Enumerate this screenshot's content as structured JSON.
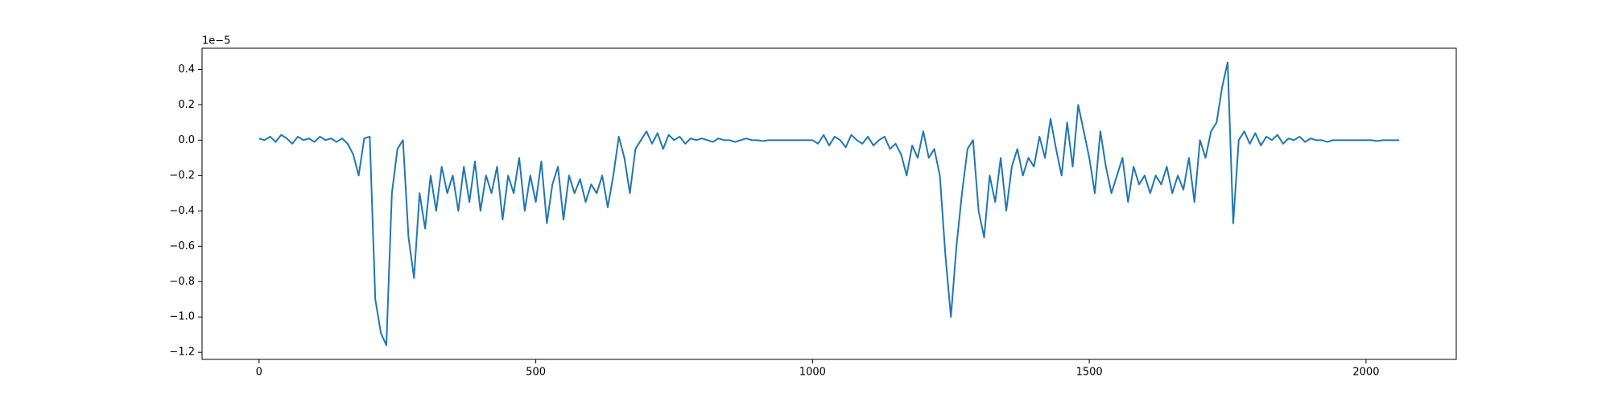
{
  "chart_data": {
    "type": "line",
    "offset_label": "1e−5",
    "color": "#1f77b4",
    "x": [
      0,
      10,
      20,
      30,
      40,
      50,
      60,
      70,
      80,
      90,
      100,
      110,
      120,
      130,
      140,
      150,
      160,
      170,
      180,
      190,
      200,
      210,
      220,
      230,
      240,
      250,
      260,
      270,
      280,
      290,
      300,
      310,
      320,
      330,
      340,
      350,
      360,
      370,
      380,
      390,
      400,
      410,
      420,
      430,
      440,
      450,
      460,
      470,
      480,
      490,
      500,
      510,
      520,
      530,
      540,
      550,
      560,
      570,
      580,
      590,
      600,
      610,
      620,
      630,
      640,
      650,
      660,
      670,
      680,
      690,
      700,
      710,
      720,
      730,
      740,
      750,
      760,
      770,
      780,
      790,
      800,
      810,
      820,
      830,
      840,
      850,
      860,
      870,
      880,
      890,
      900,
      910,
      920,
      930,
      940,
      950,
      960,
      970,
      980,
      990,
      1000,
      1010,
      1020,
      1030,
      1040,
      1050,
      1060,
      1070,
      1080,
      1090,
      1100,
      1110,
      1120,
      1130,
      1140,
      1150,
      1160,
      1170,
      1180,
      1190,
      1200,
      1210,
      1220,
      1230,
      1240,
      1250,
      1260,
      1270,
      1280,
      1290,
      1300,
      1310,
      1320,
      1330,
      1340,
      1350,
      1360,
      1370,
      1380,
      1390,
      1400,
      1410,
      1420,
      1430,
      1440,
      1450,
      1460,
      1470,
      1480,
      1490,
      1500,
      1510,
      1520,
      1530,
      1540,
      1550,
      1560,
      1570,
      1580,
      1590,
      1600,
      1610,
      1620,
      1630,
      1640,
      1650,
      1660,
      1670,
      1680,
      1690,
      1700,
      1710,
      1720,
      1730,
      1740,
      1750,
      1760,
      1770,
      1780,
      1790,
      1800,
      1810,
      1820,
      1830,
      1840,
      1850,
      1860,
      1870,
      1880,
      1890,
      1900,
      1910,
      1920,
      1930,
      1940,
      1950,
      1960,
      1970,
      1980,
      1990,
      2000,
      2010,
      2020,
      2030,
      2040,
      2050,
      2060
    ],
    "values": [
      0.01,
      0.0,
      0.02,
      -0.01,
      0.03,
      0.01,
      -0.02,
      0.02,
      0.0,
      0.01,
      -0.01,
      0.02,
      0.0,
      0.01,
      -0.01,
      0.01,
      -0.02,
      -0.08,
      -0.2,
      0.01,
      0.02,
      -0.9,
      -1.09,
      -1.16,
      -0.3,
      -0.05,
      0.0,
      -0.55,
      -0.78,
      -0.3,
      -0.5,
      -0.2,
      -0.4,
      -0.15,
      -0.3,
      -0.2,
      -0.4,
      -0.15,
      -0.35,
      -0.12,
      -0.4,
      -0.2,
      -0.3,
      -0.15,
      -0.45,
      -0.2,
      -0.3,
      -0.1,
      -0.4,
      -0.2,
      -0.35,
      -0.12,
      -0.47,
      -0.25,
      -0.15,
      -0.45,
      -0.2,
      -0.3,
      -0.22,
      -0.35,
      -0.25,
      -0.3,
      -0.2,
      -0.38,
      -0.2,
      0.02,
      -0.1,
      -0.3,
      -0.05,
      0.0,
      0.05,
      -0.02,
      0.04,
      -0.05,
      0.03,
      0.0,
      0.02,
      -0.02,
      0.01,
      0.0,
      0.01,
      0.0,
      -0.01,
      0.01,
      0.0,
      0.0,
      -0.01,
      0.0,
      0.01,
      0.0,
      0.0,
      -0.005,
      0.0,
      0.0,
      0.0,
      0.0,
      0.0,
      0.0,
      0.0,
      0.0,
      0.0,
      -0.02,
      0.03,
      -0.03,
      0.02,
      0.0,
      -0.04,
      0.03,
      0.0,
      -0.02,
      0.02,
      -0.03,
      0.0,
      0.02,
      -0.05,
      -0.02,
      -0.08,
      -0.2,
      -0.03,
      -0.1,
      0.05,
      -0.1,
      -0.05,
      -0.2,
      -0.65,
      -1.0,
      -0.6,
      -0.3,
      -0.05,
      0.0,
      -0.4,
      -0.55,
      -0.2,
      -0.35,
      -0.1,
      -0.4,
      -0.15,
      -0.05,
      -0.2,
      -0.1,
      -0.15,
      0.02,
      -0.1,
      0.12,
      -0.05,
      -0.2,
      0.1,
      -0.15,
      0.2,
      0.05,
      -0.1,
      -0.3,
      0.05,
      -0.15,
      -0.3,
      -0.2,
      -0.1,
      -0.35,
      -0.15,
      -0.25,
      -0.2,
      -0.3,
      -0.2,
      -0.25,
      -0.15,
      -0.3,
      -0.2,
      -0.28,
      -0.1,
      -0.35,
      0.0,
      -0.1,
      0.05,
      0.1,
      0.3,
      0.44,
      -0.47,
      0.0,
      0.05,
      -0.02,
      0.04,
      -0.03,
      0.02,
      0.0,
      0.03,
      -0.02,
      0.01,
      0.0,
      0.02,
      -0.01,
      0.01,
      0.0,
      0.0,
      -0.01,
      0.0,
      0.0,
      0.0,
      0.0,
      0.0,
      0.0,
      0.0,
      0.0,
      -0.005,
      0.0,
      0.0,
      0.0,
      0.0
    ],
    "xlim": [
      -103,
      2163
    ],
    "xticks": [
      0,
      500,
      1000,
      1500,
      2000
    ],
    "ylim": [
      -1.24,
      0.52
    ],
    "yticks": [
      {
        "value": -1.2,
        "label": "−1.2"
      },
      {
        "value": -1.0,
        "label": "−1.0"
      },
      {
        "value": -0.8,
        "label": "−0.8"
      },
      {
        "value": -0.6,
        "label": "−0.6"
      },
      {
        "value": -0.4,
        "label": "−0.4"
      },
      {
        "value": -0.2,
        "label": "−0.2"
      },
      {
        "value": 0,
        "label": "0.0"
      },
      0.2,
      0.4
    ],
    "grid": false
  }
}
